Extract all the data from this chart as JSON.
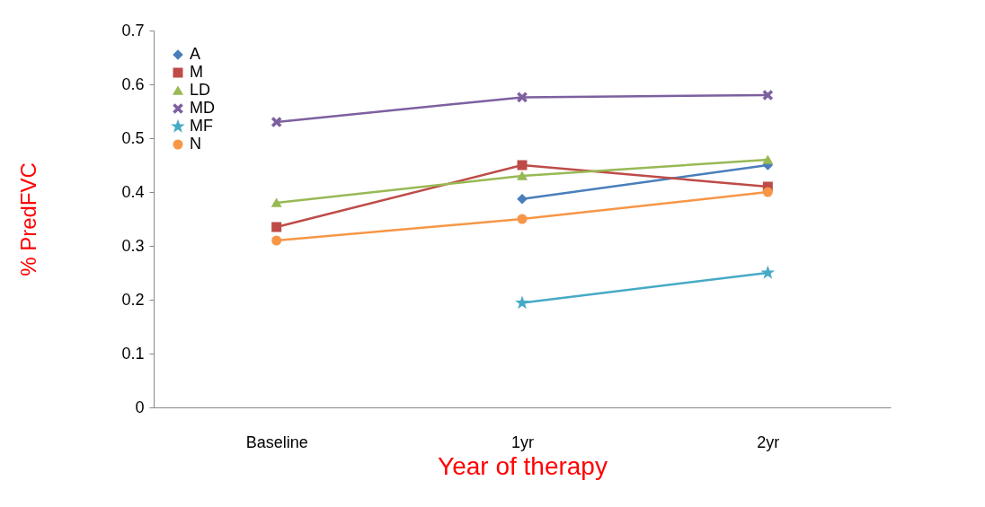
{
  "chart_data": {
    "type": "line",
    "xlabel": "Year of therapy",
    "ylabel": "% PredFVC",
    "categories": [
      "Baseline",
      "1yr",
      "2yr"
    ],
    "series": [
      {
        "name": "A",
        "color": "#4a7ebb",
        "marker": "diamond",
        "values": [
          null,
          0.387,
          0.45
        ]
      },
      {
        "name": "M",
        "color": "#be4b48",
        "marker": "square",
        "values": [
          0.335,
          0.45,
          0.41
        ]
      },
      {
        "name": "LD",
        "color": "#98b954",
        "marker": "triangle",
        "values": [
          0.38,
          0.43,
          0.46
        ]
      },
      {
        "name": "MD",
        "color": "#7d60a0",
        "marker": "cross",
        "values": [
          0.53,
          0.576,
          0.58
        ]
      },
      {
        "name": "MF",
        "color": "#46aac5",
        "marker": "star",
        "values": [
          null,
          0.194,
          0.25
        ]
      },
      {
        "name": "N",
        "color": "#f79646",
        "marker": "circle",
        "values": [
          0.31,
          0.35,
          0.4
        ]
      }
    ],
    "ylim": [
      0,
      0.7
    ],
    "yticks": [
      0,
      0.1,
      0.2,
      0.3,
      0.4,
      0.5,
      0.6,
      0.7
    ],
    "grid": false,
    "legend": "top left"
  }
}
